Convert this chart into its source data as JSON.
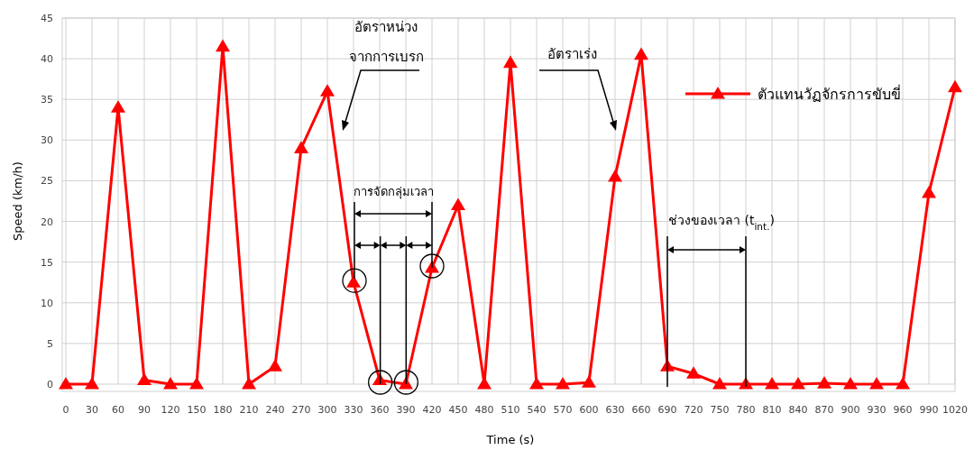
{
  "chart_data": {
    "type": "line",
    "xlabel": "Time (s)",
    "ylabel": "Speed (km/h)",
    "x": [
      0,
      30,
      60,
      90,
      120,
      150,
      180,
      210,
      240,
      270,
      300,
      330,
      360,
      390,
      420,
      450,
      480,
      510,
      540,
      570,
      600,
      630,
      660,
      690,
      720,
      750,
      780,
      810,
      840,
      870,
      900,
      930,
      960,
      990,
      1020
    ],
    "series": [
      {
        "name": "ตัวแทนวัฏจักรการขับขี่",
        "color": "#ff0000",
        "values": [
          0,
          0,
          34,
          0.5,
          0,
          0,
          41.5,
          0,
          2.2,
          29,
          36,
          12.5,
          0.5,
          0,
          14.3,
          22,
          0,
          39.5,
          0,
          0,
          0.2,
          25.5,
          40.5,
          2.2,
          1.3,
          0,
          0,
          0,
          0,
          0.1,
          0,
          0,
          0,
          23.5,
          36.5
        ]
      }
    ],
    "xlim": [
      0,
      1020
    ],
    "xticks": [
      0,
      30,
      60,
      90,
      120,
      150,
      180,
      210,
      240,
      270,
      300,
      330,
      360,
      390,
      420,
      450,
      480,
      510,
      540,
      570,
      600,
      630,
      660,
      690,
      720,
      750,
      780,
      810,
      840,
      870,
      900,
      930,
      960,
      990,
      1020
    ],
    "ylim": [
      0,
      45
    ],
    "yticks": [
      0,
      5,
      10,
      15,
      20,
      25,
      30,
      35,
      40,
      45
    ],
    "grid": true,
    "legend": "top right",
    "marker": "triangle",
    "line_style": "solid",
    "annotations": [
      "อัตราหน่วง\nจากการเบรก",
      "อัตราเร่ง",
      {
        "text": "การจัดกลุ่มเวลา",
        "x": 420,
        "y": 14.3
      },
      {
        "text": "ช่วงของเวลา (t$_{int.}$)",
        "x": 780,
        "y": 0
      }
    ]
  }
}
